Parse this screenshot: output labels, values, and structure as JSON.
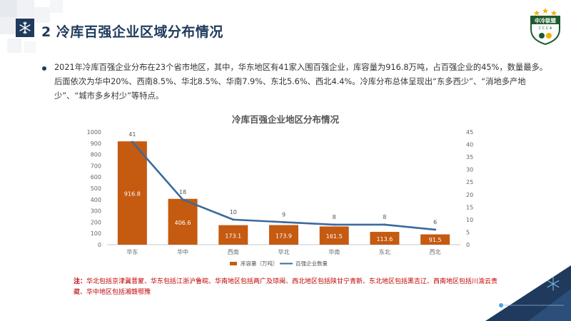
{
  "header": {
    "title": "2 冷库百强企业区域分布情况",
    "icon": "snowflake-icon",
    "logo_text": "中冷联盟",
    "logo_subtext": "C C C A"
  },
  "bullet": {
    "text": "2021年冷库百强企业分布在23个省市地区，其中，华东地区有41家入围百强企业，库容量为916.8万吨，占百强企业的45%，数量最多。后面依次为华中20%、西南8.5%、华北8.5%、华南7.9%、东北5.6%、西北4.4%。冷库分布总体呈现出“东多西少”、“消地多产地少”、“城市多乡村少”等特点。"
  },
  "note": {
    "label": "注：",
    "text": "华北包括京津冀晋蒙、华东包括江浙沪鲁皖、华南地区包括两广及琼闽、西北地区包括陕甘宁青新、东北地区包括黑吉辽、西南地区包括川渝云贵藏、华中地区包括湘赣鄂豫"
  },
  "colors": {
    "bar": "#c55a11",
    "line": "#3a6a9e",
    "title": "#1f3a5c",
    "note": "#c00000"
  },
  "chart_data": {
    "type": "bar",
    "title": "冷库百强企业地区分布情况",
    "categories": [
      "华东",
      "华中",
      "西南",
      "华北",
      "华南",
      "东北",
      "西北"
    ],
    "series": [
      {
        "name": "库容量（万吨）",
        "type": "bar",
        "axis": "left",
        "values": [
          916.8,
          406.6,
          173.1,
          173.9,
          161.5,
          113.6,
          91.5
        ]
      },
      {
        "name": "百强企业数量",
        "type": "line",
        "axis": "right",
        "values": [
          41,
          18,
          10,
          9,
          8,
          8,
          6
        ]
      }
    ],
    "y_left": {
      "min": 0,
      "max": 1000,
      "step": 100
    },
    "y_right": {
      "min": 0,
      "max": 45,
      "step": 5
    },
    "legend_position": "bottom-center",
    "grid": false
  }
}
